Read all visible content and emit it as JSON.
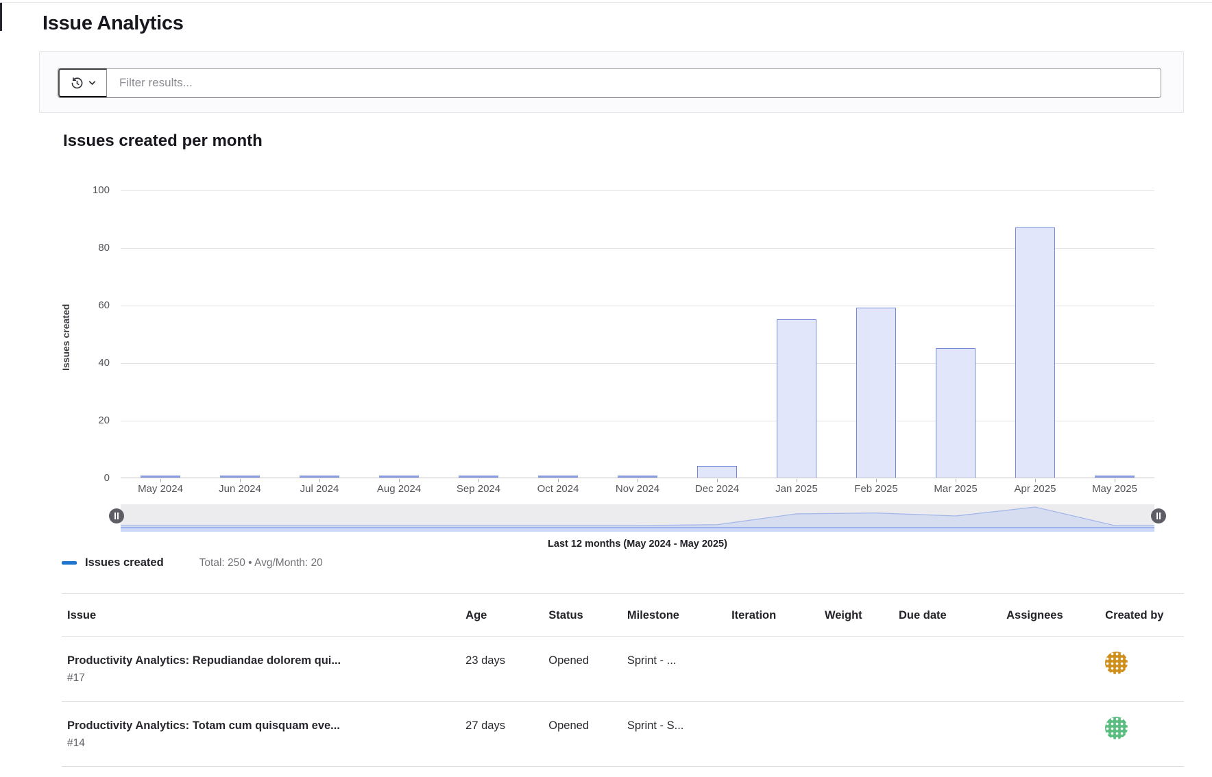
{
  "page": {
    "title": "Issue Analytics"
  },
  "filter": {
    "placeholder": "Filter results...",
    "history_button_icons": [
      "history-icon",
      "chevron-down-icon"
    ]
  },
  "chart": {
    "title": "Issues created per month",
    "range_note": "Last 12 months (May 2024 - May 2025)",
    "legend": {
      "label": "Issues created",
      "summary": "Total: 250 • Avg/Month: 20",
      "dash_color": "#1f75cb"
    }
  },
  "chart_data": {
    "type": "bar",
    "title": "Issues created per month",
    "categories": [
      "May 2024",
      "Jun 2024",
      "Jul 2024",
      "Aug 2024",
      "Sep 2024",
      "Oct 2024",
      "Nov 2024",
      "Dec 2024",
      "Jan 2025",
      "Feb 2025",
      "Mar 2025",
      "Apr 2025",
      "May 2025"
    ],
    "values": [
      0,
      0,
      0,
      0,
      0,
      0,
      0,
      4,
      55,
      59,
      45,
      87,
      0
    ],
    "xlabel": "",
    "ylabel": "Issues created",
    "ylim": [
      0,
      100
    ],
    "yticks": [
      0,
      20,
      40,
      60,
      80,
      100
    ],
    "grid": true,
    "legend_position": "bottom-left",
    "series_name": "Issues created",
    "total": 250,
    "avg_per_month": 20,
    "bar_fill": "#e2e6fa",
    "bar_border": "#7187da",
    "minimap": {
      "track_color": "#ececee",
      "area_fill": "#c5d2f2",
      "area_line": "#a3b7e9"
    }
  },
  "table": {
    "headers": [
      "Issue",
      "Age",
      "Status",
      "Milestone",
      "Iteration",
      "Weight",
      "Due date",
      "Assignees",
      "Created by"
    ],
    "col_widths": [
      "35.5%",
      "7.4%",
      "7.0%",
      "9.3%",
      "8.3%",
      "6.6%",
      "9.6%",
      "8.8%",
      "7.5%"
    ],
    "rows": [
      {
        "title": "Productivity Analytics: Repudiandae dolorem qui...",
        "id": "#17",
        "age": "23 days",
        "status": "Opened",
        "milestone": "Sprint - ...",
        "iteration": "",
        "weight": "",
        "due_date": "",
        "assignees": "",
        "created_by_avatar": "identicon-orange",
        "avatar_color": "#cf8f1d"
      },
      {
        "title": "Productivity Analytics: Totam cum quisquam eve...",
        "id": "#14",
        "age": "27 days",
        "status": "Opened",
        "milestone": "Sprint - S...",
        "iteration": "",
        "weight": "",
        "due_date": "",
        "assignees": "",
        "created_by_avatar": "identicon-green",
        "avatar_color": "#5abd80"
      }
    ]
  }
}
